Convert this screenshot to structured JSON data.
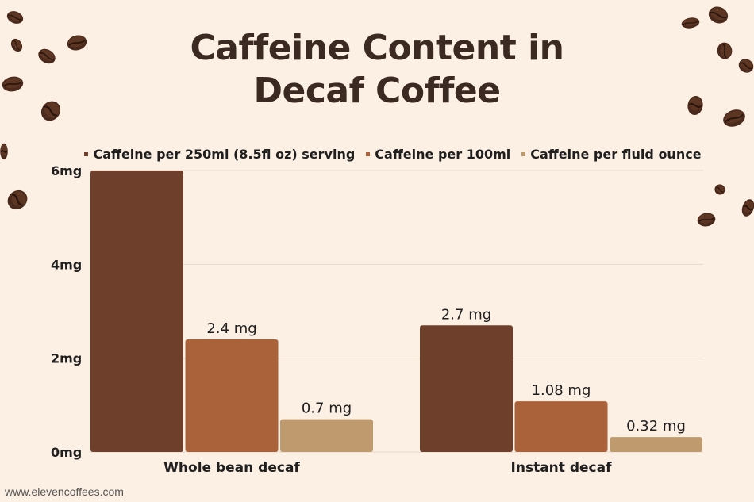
{
  "title_lines": [
    "Caffeine Content in",
    "Decaf Coffee"
  ],
  "footer": "www.elevencoffees.com",
  "colors": {
    "background": "#fcefe3",
    "series": [
      "#6e402b",
      "#a9623a",
      "#c09a6f"
    ],
    "grid": "#e5d9cc",
    "text": "#1f1f1f"
  },
  "chart_data": {
    "type": "bar",
    "title": "Caffeine Content in Decaf Coffee",
    "categories": [
      "Whole bean decaf",
      "Instant decaf"
    ],
    "series": [
      {
        "name": "Caffeine per 250ml (8.5fl oz) serving",
        "values": [
          6,
          2.7
        ],
        "labels": [
          "",
          "2.7 mg"
        ]
      },
      {
        "name": "Caffeine per 100ml",
        "values": [
          2.4,
          1.08
        ],
        "labels": [
          "2.4 mg",
          "1.08 mg"
        ]
      },
      {
        "name": "Caffeine per fluid ounce",
        "values": [
          0.7,
          0.32
        ],
        "labels": [
          "0.7 mg",
          "0.32 mg"
        ]
      }
    ],
    "yticks": [
      0,
      2,
      4,
      6
    ],
    "ytick_labels": [
      "0mg",
      "2mg",
      "4mg",
      "6mg"
    ],
    "ylim": [
      0,
      6
    ],
    "grid": true,
    "legend_position": "top"
  }
}
